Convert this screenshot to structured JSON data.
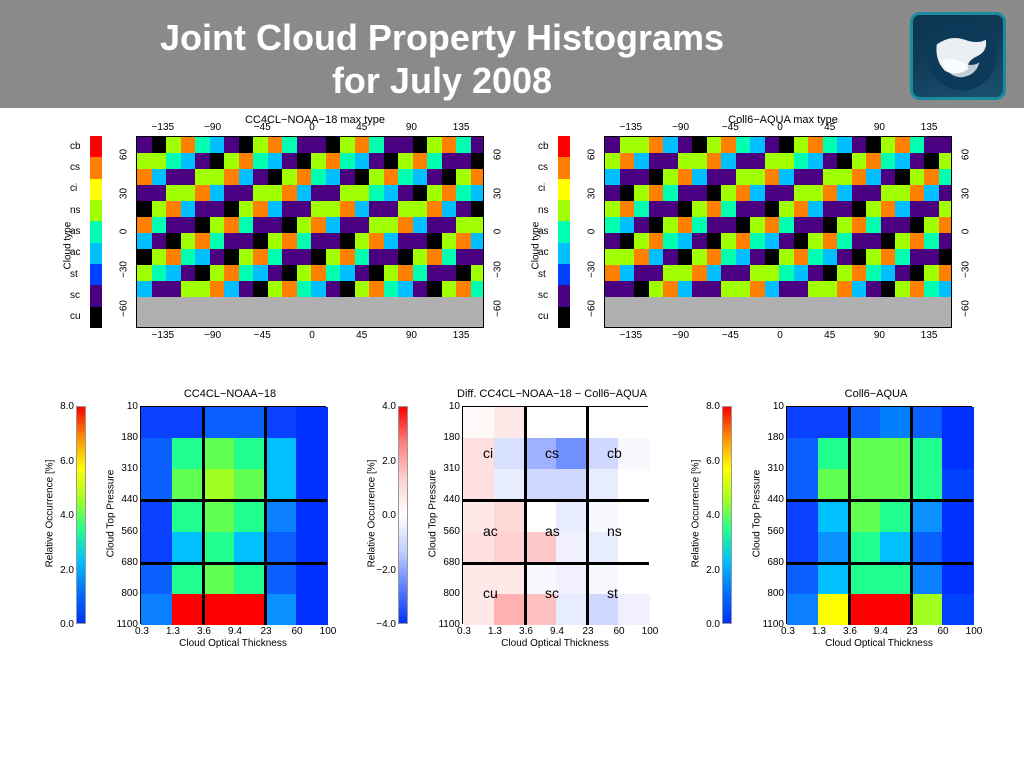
{
  "title_line1": "Joint Cloud Property Histograms",
  "title_line2": "for July 2008",
  "maps": {
    "left": {
      "title": "CC4CL−NOAA−18 max type"
    },
    "right": {
      "title": "Coll6−AQUA max type"
    },
    "lon_ticks": [
      "−135",
      "−90",
      "−45",
      "0",
      "45",
      "90",
      "135"
    ],
    "lat_ticks": [
      "60",
      "30",
      "0",
      "−30",
      "−60"
    ],
    "cloud_type_axis": "Cloud type",
    "cloud_types": [
      "cb",
      "cs",
      "ci",
      "ns",
      "as",
      "ac",
      "st",
      "sc",
      "cu"
    ],
    "type_colors": [
      "#ff0000",
      "#ff8000",
      "#ffff00",
      "#a0ff00",
      "#00ffb0",
      "#00bfff",
      "#0040ff",
      "#4b0082",
      "#000000"
    ]
  },
  "hist": {
    "left": {
      "title": "CC4CL−NOAA−18"
    },
    "mid": {
      "title": "Diff. CC4CL−NOAA−18 − Coll6−AQUA"
    },
    "right": {
      "title": "Coll6−AQUA"
    },
    "yaxis_label": "Cloud Top Pressure",
    "xaxis_label": "Cloud Optical Thickness",
    "cbar_label": "Relative Occurrence [%]",
    "yticks": [
      "10",
      "180",
      "310",
      "440",
      "560",
      "680",
      "800",
      "1100"
    ],
    "xticks": [
      "0.3",
      "1.3",
      "3.6",
      "9.4",
      "23",
      "60",
      "100"
    ],
    "abs_cbar_ticks": [
      "8.0",
      "6.0",
      "4.0",
      "2.0",
      "0.0"
    ],
    "diff_cbar_ticks": [
      "4.0",
      "2.0",
      "0.0",
      "−2.0",
      "−4.0"
    ],
    "cell_labels": [
      [
        "ci",
        "cs",
        "cb"
      ],
      [
        "ac",
        "as",
        "ns"
      ],
      [
        "cu",
        "sc",
        "st"
      ]
    ],
    "abs_palette": [
      "#0030ff",
      "#0070ff",
      "#00c0ff",
      "#20ff90",
      "#a0ff20",
      "#ffff00",
      "#ff9000",
      "#ff0000"
    ],
    "diff_palette": [
      "#0030ff",
      "#6080ff",
      "#c0d0ff",
      "#ffffff",
      "#ffd0d0",
      "#ff8080",
      "#ff0000"
    ],
    "left_grid": [
      [
        "#0a40ff",
        "#0a40ff",
        "#0a60ff",
        "#0a60ff",
        "#0a40ff",
        "#0030ff"
      ],
      [
        "#0a60ff",
        "#20ff90",
        "#60ff50",
        "#20ff90",
        "#00c0ff",
        "#0030ff"
      ],
      [
        "#0a60ff",
        "#60ff50",
        "#a0ff20",
        "#60ff50",
        "#00c0ff",
        "#0030ff"
      ],
      [
        "#0a40ff",
        "#20ff90",
        "#60ff50",
        "#20ff90",
        "#0a80ff",
        "#0030ff"
      ],
      [
        "#0a40ff",
        "#00c0ff",
        "#20ff90",
        "#00c0ff",
        "#0a60ff",
        "#0030ff"
      ],
      [
        "#0a60ff",
        "#20ff90",
        "#60ff50",
        "#20ff90",
        "#0a60ff",
        "#0030ff"
      ],
      [
        "#0a80ff",
        "#ff0000",
        "#ff0000",
        "#ff0000",
        "#0a90ff",
        "#0030ff"
      ]
    ],
    "right_grid": [
      [
        "#0a40ff",
        "#0a40ff",
        "#0a60ff",
        "#0080ff",
        "#0a60ff",
        "#0030ff"
      ],
      [
        "#0a60ff",
        "#20ff90",
        "#60ff50",
        "#60ff50",
        "#20ff90",
        "#0030ff"
      ],
      [
        "#0a60ff",
        "#60ff50",
        "#60ff50",
        "#60ff50",
        "#20ff90",
        "#0040ff"
      ],
      [
        "#0a40ff",
        "#00c0ff",
        "#60ff50",
        "#20ff90",
        "#0a90ff",
        "#0030ff"
      ],
      [
        "#0a40ff",
        "#0a90ff",
        "#20ff90",
        "#00c0ff",
        "#0a60ff",
        "#0030ff"
      ],
      [
        "#0a60ff",
        "#00c0ff",
        "#20ff90",
        "#20ff90",
        "#0a80ff",
        "#0030ff"
      ],
      [
        "#0a80ff",
        "#ffff00",
        "#ff0000",
        "#ff0000",
        "#a0ff20",
        "#0040ff"
      ]
    ],
    "diff_grid": [
      [
        "#fff8f8",
        "#ffe8e8",
        "#fff",
        "#fff",
        "#fff",
        "#fff"
      ],
      [
        "#ffe0e0",
        "#d8e0ff",
        "#9fb0ff",
        "#7090ff",
        "#d0d8ff",
        "#f8f8ff"
      ],
      [
        "#ffe0e0",
        "#e8ecff",
        "#d0d8ff",
        "#d0d8ff",
        "#e8ecff",
        "#fff"
      ],
      [
        "#ffe8e8",
        "#ffd8d8",
        "#fff",
        "#e8ecff",
        "#f8f8ff",
        "#fff"
      ],
      [
        "#ffe0e0",
        "#ffd0d0",
        "#ffc8c8",
        "#f0f0ff",
        "#e8ecff",
        "#fff"
      ],
      [
        "#ffe8e8",
        "#ffe8e8",
        "#f8f8ff",
        "#f0f0ff",
        "#f8f8ff",
        "#fff"
      ],
      [
        "#ffe8e8",
        "#ffb0b0",
        "#ffc0c0",
        "#e8ecff",
        "#d0d8ff",
        "#f0f0ff"
      ]
    ]
  }
}
